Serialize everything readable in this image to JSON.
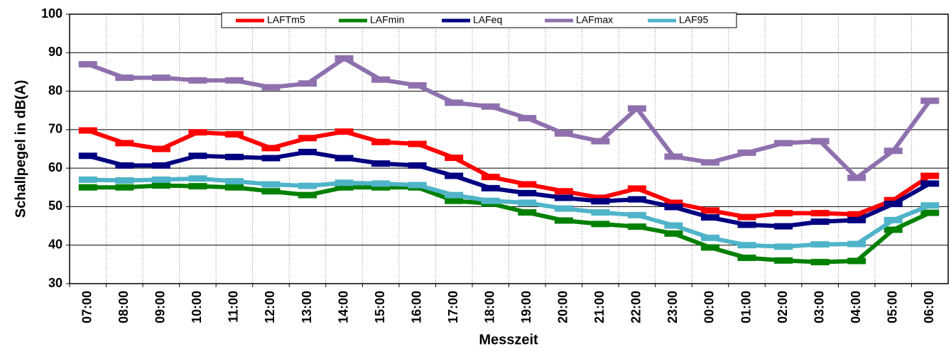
{
  "chart_data": {
    "type": "line",
    "x_label": "Messzeit",
    "y_label": "Schallpegel in dB(A)",
    "categories": [
      "07:00",
      "08:00",
      "09:00",
      "10:00",
      "11:00",
      "12:00",
      "13:00",
      "14:00",
      "15:00",
      "16:00",
      "17:00",
      "18:00",
      "19:00",
      "20:00",
      "21:00",
      "22:00",
      "23:00",
      "00:00",
      "01:00",
      "02:00",
      "03:00",
      "04:00",
      "05:00",
      "06:00"
    ],
    "ylim": [
      30,
      100
    ],
    "yticks": [
      30,
      40,
      50,
      60,
      70,
      80,
      90,
      100
    ],
    "grid": true,
    "legend": "top",
    "series": [
      {
        "name": "LAFTm5",
        "color": "#ff0000",
        "values": [
          69.8,
          66.5,
          65,
          69.3,
          68.8,
          65.2,
          67.8,
          69.5,
          66.8,
          66.3,
          62.7,
          57.7,
          55.8,
          54,
          52.3,
          54.7,
          51,
          49,
          47.3,
          48.3,
          48.3,
          48,
          51.7,
          58
        ]
      },
      {
        "name": "LAFmin",
        "color": "#008000",
        "values": [
          55,
          55,
          55.5,
          55.3,
          55,
          54,
          53,
          55,
          55,
          55,
          51.5,
          50.8,
          48.5,
          46.4,
          45.5,
          44.8,
          43,
          39.4,
          36.7,
          36,
          35.6,
          35.9,
          44,
          48.4
        ]
      },
      {
        "name": "LAFeq",
        "color": "#000080",
        "values": [
          63.2,
          60.7,
          60.7,
          63.2,
          62.9,
          62.6,
          64.2,
          62.6,
          61.2,
          60.7,
          58,
          54.8,
          53.5,
          52.3,
          51.4,
          51.9,
          49.9,
          47.2,
          45.3,
          44.9,
          46.1,
          46.5,
          50.7,
          56
        ]
      },
      {
        "name": "LAFmax",
        "color": "#8f70ae",
        "values": [
          87,
          83.5,
          83.5,
          82.8,
          82.8,
          81,
          82,
          88.5,
          83,
          81.5,
          77,
          76,
          73,
          69,
          67,
          75.5,
          63,
          61.5,
          64,
          66.5,
          67,
          57.5,
          64.5,
          77.5
        ]
      },
      {
        "name": "LAF95",
        "color": "#4fb4c9",
        "values": [
          57,
          56.8,
          57,
          57.3,
          56.6,
          55.8,
          55.4,
          56.2,
          56,
          55.6,
          53,
          51.5,
          51,
          49.5,
          48.5,
          47.8,
          45.1,
          41.9,
          40,
          39.6,
          40.2,
          40.3,
          46.5,
          50.3
        ]
      }
    ]
  }
}
